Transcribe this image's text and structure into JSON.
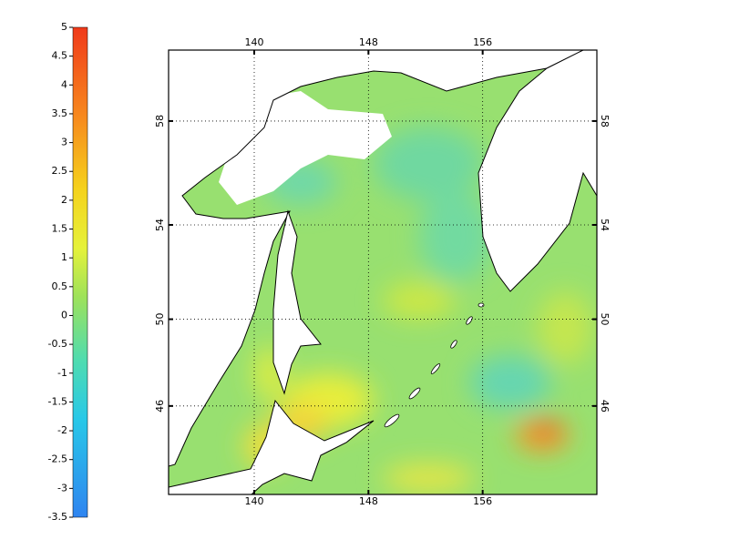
{
  "colorbar": {
    "lim": [
      -3.5,
      5
    ],
    "ticks": [
      5,
      4.5,
      4,
      3.5,
      3,
      2.5,
      2,
      1.5,
      1,
      0.5,
      0,
      -0.5,
      -1,
      -1.5,
      -2,
      -2.5,
      -3,
      -3.5
    ]
  },
  "map": {
    "lon_lim": [
      134,
      164
    ],
    "lat_lim": [
      41.6,
      60.5
    ],
    "lon_ticks": [
      140,
      148,
      156
    ],
    "lat_ticks": [
      46,
      50,
      54,
      58
    ]
  }
}
